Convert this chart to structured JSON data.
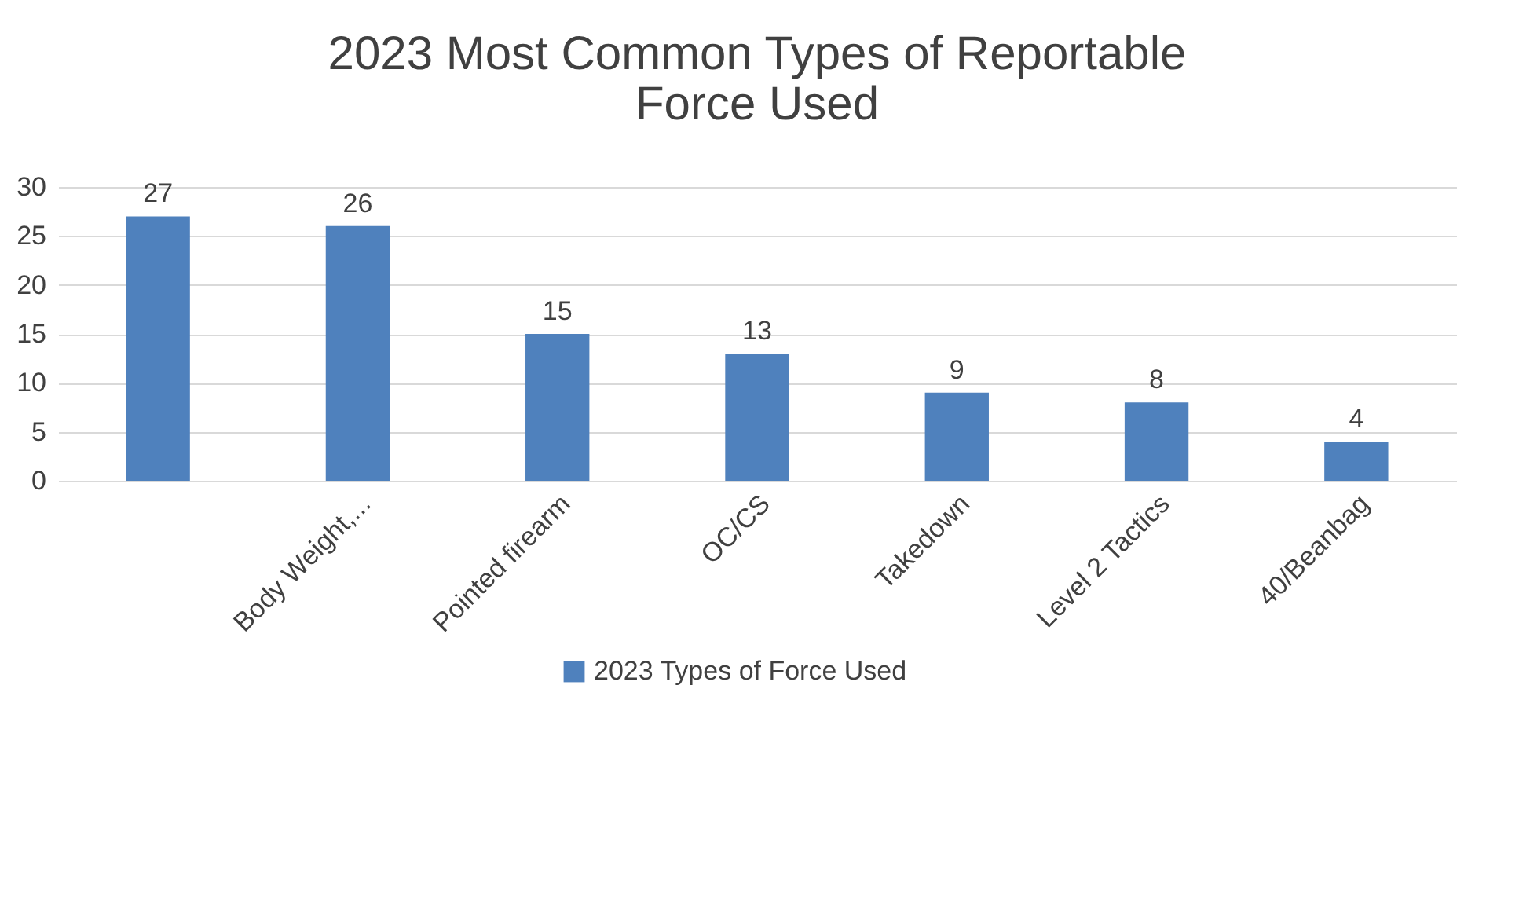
{
  "chart_data": {
    "type": "bar",
    "title": "2023 Most Common Types of Reportable Force Used",
    "categories": [
      null,
      "Body Weight,...",
      "Pointed firearm",
      "OC/CS",
      "Takedown",
      "Level 2 Tactics",
      "40/Beanbag"
    ],
    "series": [
      {
        "name": "2023 Types of Force Used",
        "color": "#4f81bd",
        "values": [
          27,
          26,
          15,
          13,
          9,
          8,
          4
        ]
      }
    ],
    "ylim": [
      0,
      30
    ],
    "yticks": [
      0,
      5,
      10,
      15,
      20,
      25,
      30
    ],
    "grid": "y",
    "legend": "bottom",
    "data_labels": true
  }
}
